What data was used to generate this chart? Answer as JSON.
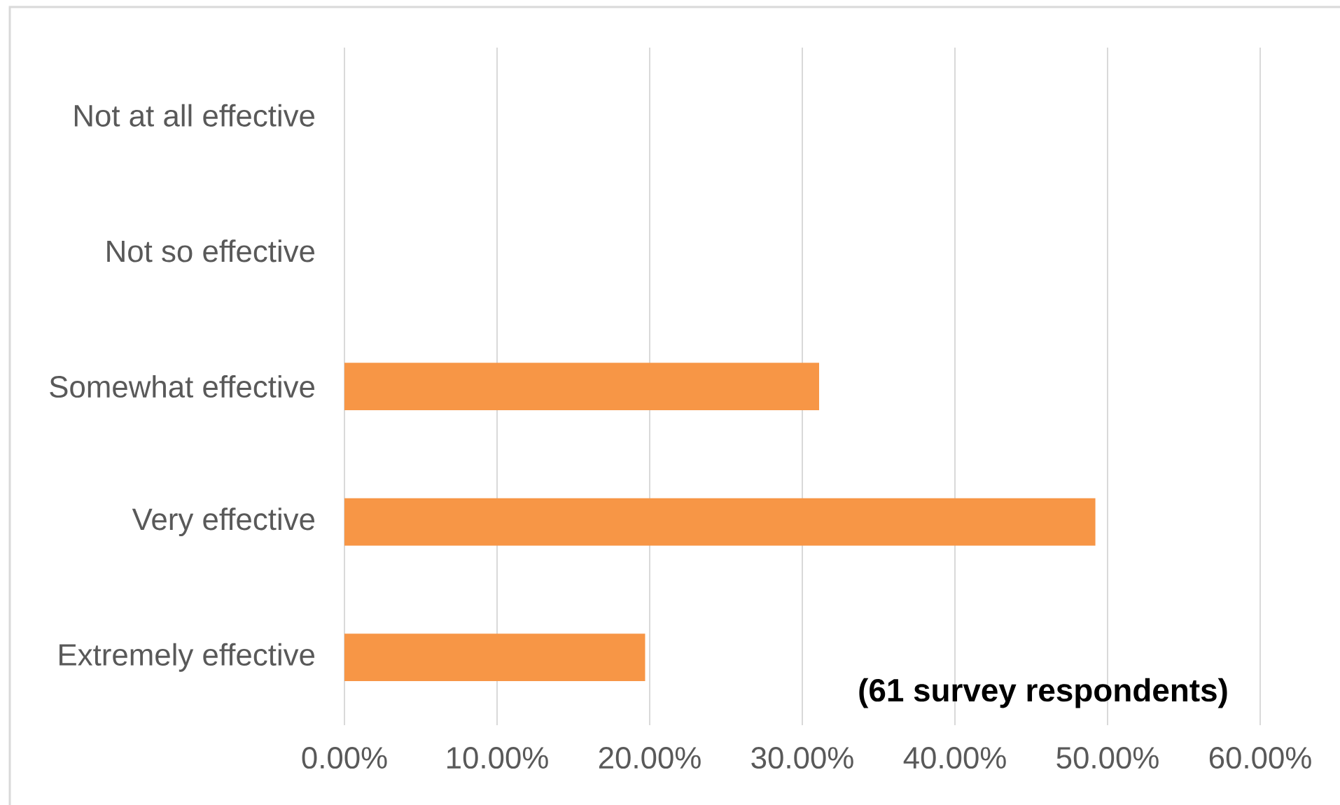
{
  "chart_data": {
    "type": "bar",
    "orientation": "horizontal",
    "categories": [
      "Not at all effective",
      "Not so effective",
      "Somewhat effective",
      "Very effective",
      "Extremely effective"
    ],
    "values": [
      0,
      0,
      31.1,
      49.2,
      19.7
    ],
    "color": "#f79646",
    "xlim": [
      0,
      60
    ],
    "xticks": [
      {
        "value": 0,
        "label": "0.00%"
      },
      {
        "value": 10,
        "label": "10.00%"
      },
      {
        "value": 20,
        "label": "20.00%"
      },
      {
        "value": 30,
        "label": "30.00%"
      },
      {
        "value": 40,
        "label": "40.00%"
      },
      {
        "value": 50,
        "label": "50.00%"
      },
      {
        "value": 60,
        "label": "60.00%"
      }
    ],
    "grid": "x",
    "annotations": [
      "(61 survey respondents)"
    ]
  }
}
